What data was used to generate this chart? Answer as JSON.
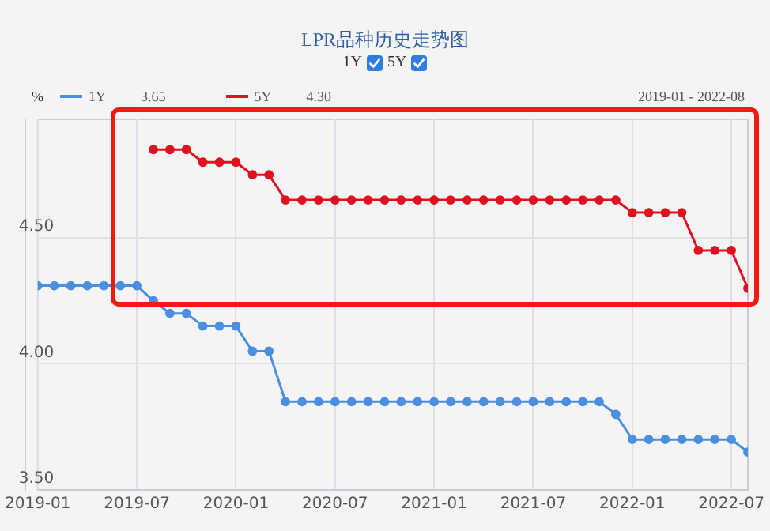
{
  "chart_data": {
    "type": "line",
    "title": "LPR品种历史走势图",
    "ylabel": "%",
    "annotations": [
      "3.65",
      "4.30",
      "2019-01 - 2022-08"
    ],
    "x": [
      "2019-01",
      "2019-02",
      "2019-03",
      "2019-04",
      "2019-05",
      "2019-06",
      "2019-07",
      "2019-08",
      "2019-09",
      "2019-10",
      "2019-11",
      "2019-12",
      "2020-01",
      "2020-02",
      "2020-03",
      "2020-04",
      "2020-05",
      "2020-06",
      "2020-07",
      "2020-08",
      "2020-09",
      "2020-10",
      "2020-11",
      "2020-12",
      "2021-01",
      "2021-02",
      "2021-03",
      "2021-04",
      "2021-05",
      "2021-06",
      "2021-07",
      "2021-08",
      "2021-09",
      "2021-10",
      "2021-11",
      "2021-12",
      "2022-01",
      "2022-02",
      "2022-03",
      "2022-04",
      "2022-05",
      "2022-06",
      "2022-07",
      "2022-08"
    ],
    "series": [
      {
        "name": "1Y",
        "color": "#4a8fe0",
        "values": [
          4.31,
          4.31,
          4.31,
          4.31,
          4.31,
          4.31,
          4.31,
          4.25,
          4.2,
          4.2,
          4.15,
          4.15,
          4.15,
          4.05,
          4.05,
          3.85,
          3.85,
          3.85,
          3.85,
          3.85,
          3.85,
          3.85,
          3.85,
          3.85,
          3.85,
          3.85,
          3.85,
          3.85,
          3.85,
          3.85,
          3.85,
          3.85,
          3.85,
          3.85,
          3.85,
          3.8,
          3.7,
          3.7,
          3.7,
          3.7,
          3.7,
          3.7,
          3.7,
          3.65
        ]
      },
      {
        "name": "5Y",
        "color": "#e0121f",
        "x": [
          "2019-08",
          "2019-09",
          "2019-10",
          "2019-11",
          "2019-12",
          "2020-01",
          "2020-02",
          "2020-03",
          "2020-04",
          "2020-05",
          "2020-06",
          "2020-07",
          "2020-08",
          "2020-09",
          "2020-10",
          "2020-11",
          "2020-12",
          "2021-01",
          "2021-02",
          "2021-03",
          "2021-04",
          "2021-05",
          "2021-06",
          "2021-07",
          "2021-08",
          "2021-09",
          "2021-10",
          "2021-11",
          "2021-12",
          "2022-01",
          "2022-02",
          "2022-03",
          "2022-04",
          "2022-05",
          "2022-06",
          "2022-07",
          "2022-08"
        ],
        "values": [
          4.85,
          4.85,
          4.85,
          4.8,
          4.8,
          4.8,
          4.75,
          4.75,
          4.65,
          4.65,
          4.65,
          4.65,
          4.65,
          4.65,
          4.65,
          4.65,
          4.65,
          4.65,
          4.65,
          4.65,
          4.65,
          4.65,
          4.65,
          4.65,
          4.65,
          4.65,
          4.65,
          4.65,
          4.65,
          4.6,
          4.6,
          4.6,
          4.6,
          4.45,
          4.45,
          4.45,
          4.3
        ]
      }
    ],
    "xlim": [
      "2019-01",
      "2022-08"
    ],
    "xticks": [
      "2019-01",
      "2019-07",
      "2020-01",
      "2020-07",
      "2021-01",
      "2021-07",
      "2022-01",
      "2022-07"
    ],
    "ylim": [
      3.5,
      4.97
    ],
    "yticks": [
      {
        "value": 3.5,
        "label": "3.50"
      },
      {
        "value": 4,
        "label": "4.00"
      },
      {
        "value": 4.5,
        "label": "4.50"
      }
    ],
    "grid": true,
    "legend": "top left",
    "marker": "circle",
    "line_style": "solid"
  }
}
